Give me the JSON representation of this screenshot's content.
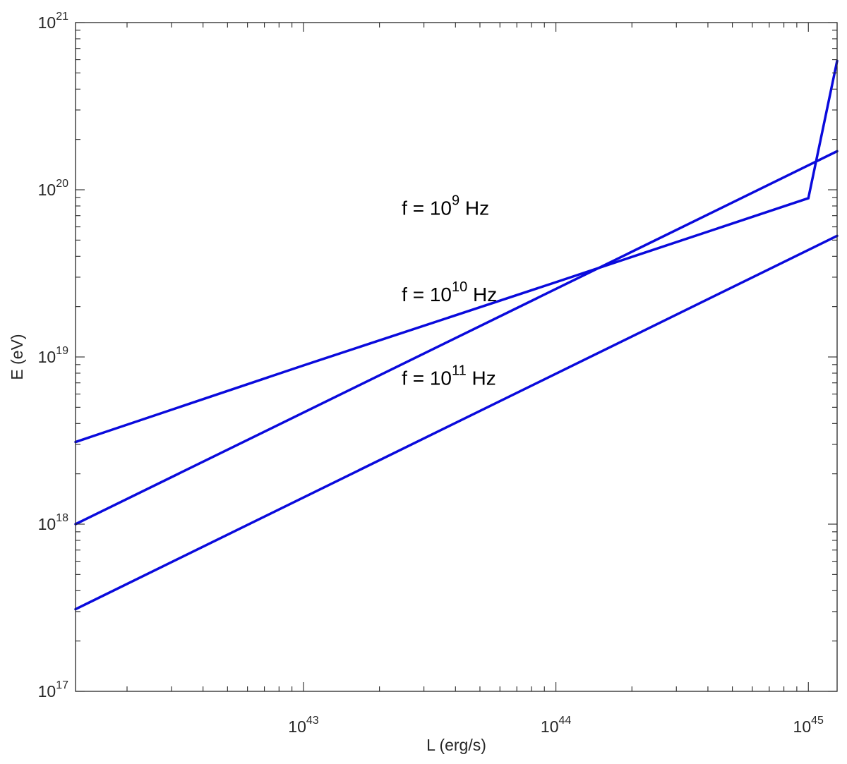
{
  "chart_data": {
    "type": "line",
    "xscale": "log",
    "yscale": "log",
    "xlabel": "L (erg/s)",
    "ylabel": "E (eV)",
    "xlim": [
      1.25e+42,
      1.3e+45
    ],
    "ylim": [
      1e+17,
      1e+21
    ],
    "grid": false,
    "legend": "none",
    "x_ticks": [
      {
        "base": "10",
        "exp": "43",
        "value": 1e+43
      },
      {
        "base": "10",
        "exp": "44",
        "value": 1e+44
      },
      {
        "base": "10",
        "exp": "45",
        "value": 1e+45
      }
    ],
    "y_ticks": [
      {
        "base": "10",
        "exp": "17",
        "value": 1e+17
      },
      {
        "base": "10",
        "exp": "18",
        "value": 1e+18
      },
      {
        "base": "10",
        "exp": "19",
        "value": 1e+19
      },
      {
        "base": "10",
        "exp": "20",
        "value": 1e+20
      },
      {
        "base": "10",
        "exp": "21",
        "value": 1e+21
      }
    ],
    "series_color": "#0a0adc",
    "series": [
      {
        "x": [
          1.25e+42,
          1e+43,
          1e+44,
          1e+45,
          1.3e+45
        ],
        "y": [
          3.1e+18,
          8.9e+18,
          2.8e+19,
          8.9e+19,
          5.9e+20
        ]
      },
      {
        "x": [
          1.25e+42,
          1.3e+45
        ],
        "y": [
          1e+18,
          1.7e+20
        ]
      },
      {
        "x": [
          1.25e+42,
          1.3e+45
        ],
        "y": [
          3.1e+17,
          5.3e+19
        ]
      }
    ],
    "annotations": [
      {
        "prefix": "f = 10",
        "exp": "9",
        "suffix": " Hz",
        "x": 2.45e+43,
        "y": 7.1e+19
      },
      {
        "prefix": "f = 10",
        "exp": "10",
        "suffix": " Hz",
        "x": 2.45e+43,
        "y": 2.15e+19
      },
      {
        "prefix": "f = 10",
        "exp": "11",
        "suffix": " Hz",
        "x": 2.45e+43,
        "y": 6.8e+18
      }
    ]
  }
}
